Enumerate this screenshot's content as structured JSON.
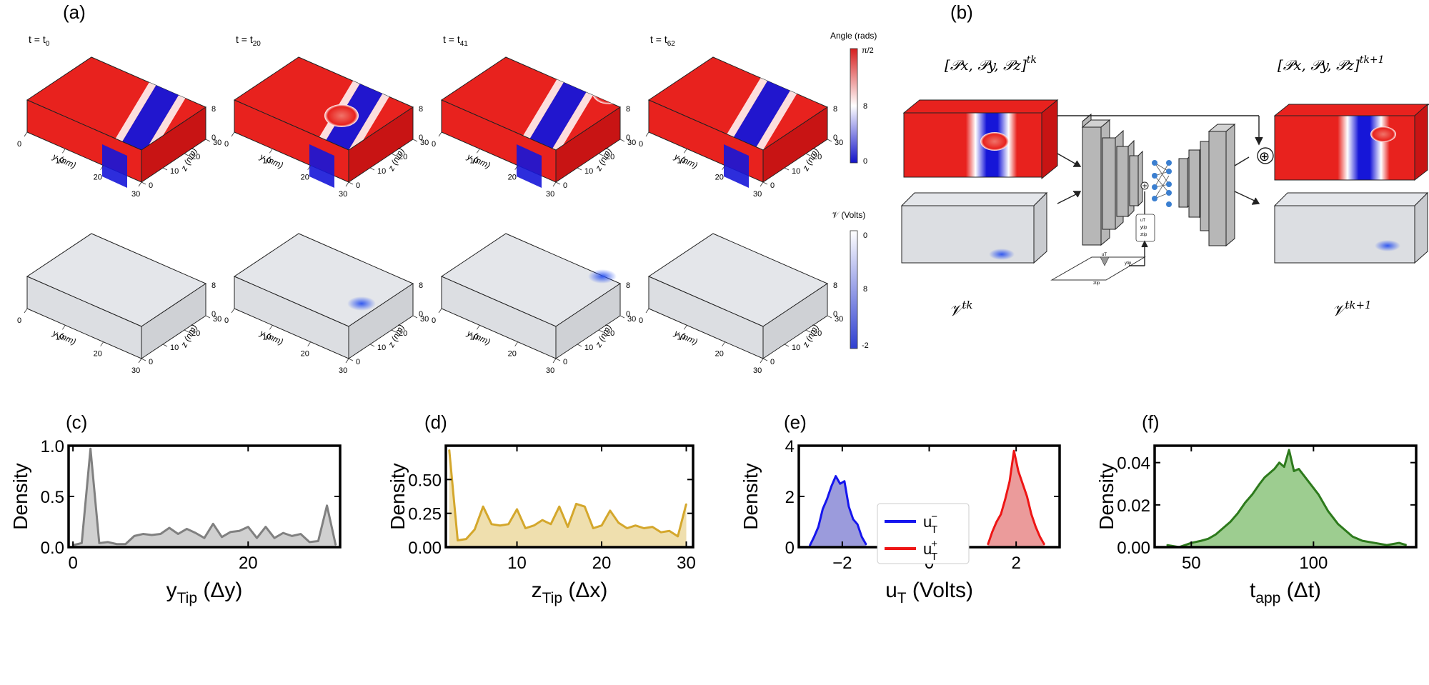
{
  "panel_labels": {
    "a": "(a)",
    "b": "(b)",
    "c": "(c)",
    "d": "(d)",
    "e": "(e)",
    "f": "(f)"
  },
  "time_labels": [
    {
      "base": "t = t",
      "sub": "0"
    },
    {
      "base": "t = t",
      "sub": "20"
    },
    {
      "base": "t = t",
      "sub": "41"
    },
    {
      "base": "t = t",
      "sub": "62"
    }
  ],
  "slab_axes": {
    "y_label": "y (nm)",
    "z_label": "z (nm)",
    "y_ticks": [
      "0",
      "10",
      "20",
      "30"
    ],
    "z_ticks": [
      "0",
      "10",
      "20",
      "30"
    ],
    "x_ticks": [
      "0",
      "8"
    ]
  },
  "colorbar_angle": {
    "title": "Angle (rads)",
    "top": "π/2",
    "mid": "8",
    "bottom": "0"
  },
  "colorbar_volt": {
    "title": "𝒱 (Volts)",
    "top": "0",
    "mid": "8",
    "bottom": "-2"
  },
  "schematic": {
    "p_in": "[𝒫x, 𝒫y, 𝒫z]",
    "p_in_sup": "tk",
    "p_out": "[𝒫x, 𝒫y, 𝒫z]",
    "p_out_sup": "tk+1",
    "v_in": "𝒱",
    "v_in_sup": "tk",
    "v_out": "𝒱",
    "v_out_sup": "tk+1",
    "inputs_box": [
      "uT",
      "ytip",
      "ztip"
    ],
    "plus": "⊕",
    "tip_labels": {
      "u": "uT",
      "y": "ytip",
      "z": "ztip"
    }
  },
  "colors": {
    "red": "#e8221e",
    "blue": "#1616d8",
    "slab_gray": "#dcdee2",
    "gray_hist": "#808080",
    "gold_hist": "#d4a72c",
    "blue_hist": "#1515ee",
    "red_hist": "#ee1515",
    "green_hist": "#2d7a1c",
    "green_fill": "#8cc47c"
  },
  "chart_data": [
    {
      "id": "c",
      "type": "area",
      "xlabel": "y",
      "xlabel_sub": "Tip",
      "xlabel_unit": " (Δy)",
      "ylabel": "Density",
      "xlim": [
        -0.5,
        30.5
      ],
      "ylim": [
        0,
        1.0
      ],
      "xticks": [
        0,
        20
      ],
      "yticks": [
        0.0,
        0.5,
        1.0
      ],
      "ytick_labels": [
        "0.0",
        "0.5",
        "1.0"
      ],
      "x": [
        0,
        1,
        2,
        3,
        4,
        5,
        6,
        7,
        8,
        9,
        10,
        11,
        12,
        13,
        14,
        15,
        16,
        17,
        18,
        19,
        20,
        21,
        22,
        23,
        24,
        25,
        26,
        27,
        28,
        29,
        30
      ],
      "values": [
        0.02,
        0.04,
        0.97,
        0.04,
        0.05,
        0.03,
        0.03,
        0.11,
        0.13,
        0.12,
        0.13,
        0.19,
        0.13,
        0.18,
        0.14,
        0.09,
        0.23,
        0.1,
        0.15,
        0.16,
        0.2,
        0.09,
        0.2,
        0.09,
        0.14,
        0.11,
        0.13,
        0.05,
        0.06,
        0.41,
        0.02
      ],
      "color": "#808080",
      "fill": "#c8c8c8"
    },
    {
      "id": "d",
      "type": "area",
      "xlabel": "z",
      "xlabel_sub": "Tip",
      "xlabel_unit": " (Δx)",
      "ylabel": "Density",
      "xlim": [
        1.6,
        30.8
      ],
      "ylim": [
        0,
        0.75
      ],
      "xticks": [
        10,
        20,
        30
      ],
      "yticks": [
        0.0,
        0.25,
        0.5
      ],
      "ytick_labels": [
        "0.00",
        "0.25",
        "0.50"
      ],
      "x": [
        2,
        3,
        4,
        5,
        6,
        7,
        8,
        9,
        10,
        11,
        12,
        13,
        14,
        15,
        16,
        17,
        18,
        19,
        20,
        21,
        22,
        23,
        24,
        25,
        26,
        27,
        28,
        29,
        30
      ],
      "values": [
        0.72,
        0.05,
        0.06,
        0.13,
        0.3,
        0.17,
        0.16,
        0.17,
        0.28,
        0.14,
        0.16,
        0.2,
        0.17,
        0.3,
        0.15,
        0.32,
        0.3,
        0.14,
        0.16,
        0.27,
        0.18,
        0.14,
        0.16,
        0.14,
        0.15,
        0.11,
        0.12,
        0.08,
        0.32
      ],
      "color": "#d4a72c",
      "fill": "#ecd9a0"
    },
    {
      "id": "e",
      "type": "area",
      "xlabel": "u",
      "xlabel_sub": "T",
      "xlabel_unit": " (Volts)",
      "ylabel": "Density",
      "xlim": [
        -3.0,
        3.0
      ],
      "ylim": [
        0,
        4.0
      ],
      "xticks": [
        -2,
        0,
        2
      ],
      "yticks": [
        0,
        2,
        4
      ],
      "ytick_labels": [
        "0",
        "2",
        "4"
      ],
      "legend": {
        "position": "center",
        "entries": [
          {
            "name": "u",
            "sub": "T",
            "sup": "−",
            "color": "#1515ee"
          },
          {
            "name": "u",
            "sub": "T",
            "sup": "+",
            "color": "#ee1515"
          }
        ]
      },
      "series": [
        {
          "name": "uT-",
          "color": "#1515ee",
          "fill": "#8a8ad6",
          "x": [
            -2.75,
            -2.65,
            -2.55,
            -2.45,
            -2.35,
            -2.25,
            -2.15,
            -2.05,
            -1.95,
            -1.85,
            -1.75,
            -1.65,
            -1.55,
            -1.45
          ],
          "values": [
            0.05,
            0.4,
            0.8,
            1.5,
            1.9,
            2.4,
            2.8,
            2.5,
            2.6,
            1.6,
            1.1,
            0.9,
            0.4,
            0.1
          ]
        },
        {
          "name": "uT+",
          "color": "#ee1515",
          "fill": "#e88a8a",
          "x": [
            1.35,
            1.45,
            1.55,
            1.65,
            1.75,
            1.85,
            1.95,
            2.05,
            2.15,
            2.25,
            2.35,
            2.45,
            2.55,
            2.65
          ],
          "values": [
            0.1,
            0.6,
            1.0,
            1.3,
            1.9,
            2.6,
            3.8,
            3.0,
            2.5,
            2.0,
            1.3,
            0.8,
            0.4,
            0.1
          ]
        }
      ]
    },
    {
      "id": "f",
      "type": "area",
      "xlabel": "t",
      "xlabel_sub": "app",
      "xlabel_unit": " (Δt)",
      "ylabel": "Density",
      "xlim": [
        35,
        142
      ],
      "ylim": [
        0,
        0.048
      ],
      "xticks": [
        50,
        100
      ],
      "yticks": [
        0.0,
        0.02,
        0.04
      ],
      "ytick_labels": [
        "0.00",
        "0.02",
        "0.04"
      ],
      "x": [
        40,
        45,
        50,
        54,
        57,
        60,
        63,
        66,
        69,
        72,
        75,
        78,
        80,
        82,
        84,
        86,
        88,
        90,
        92,
        94,
        96,
        98,
        100,
        102,
        104,
        106,
        108,
        110,
        113,
        116,
        120,
        125,
        130,
        135,
        138
      ],
      "values": [
        0.001,
        0.0,
        0.002,
        0.003,
        0.004,
        0.006,
        0.009,
        0.012,
        0.016,
        0.021,
        0.025,
        0.03,
        0.033,
        0.035,
        0.037,
        0.04,
        0.038,
        0.046,
        0.036,
        0.037,
        0.034,
        0.031,
        0.028,
        0.025,
        0.021,
        0.017,
        0.014,
        0.011,
        0.008,
        0.005,
        0.003,
        0.002,
        0.001,
        0.002,
        0.001
      ],
      "color": "#2d7a1c",
      "fill": "#8cc47c"
    }
  ]
}
